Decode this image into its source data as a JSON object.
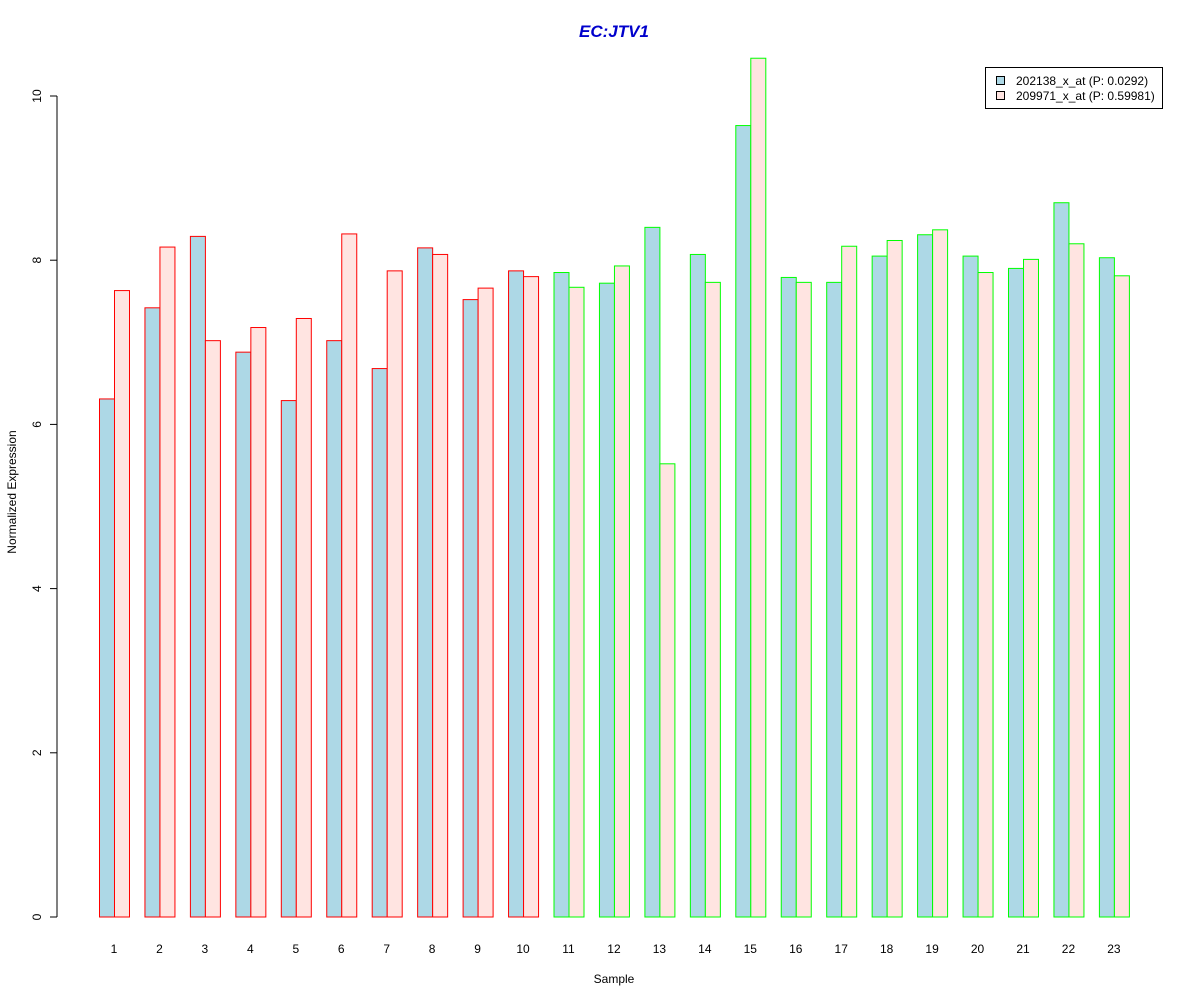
{
  "chart_data": {
    "type": "bar",
    "title": "EC:JTV1",
    "xlabel": "Sample",
    "ylabel": "Normalized Expression",
    "ylim": [
      0,
      10.5
    ],
    "y_ticks": [
      0,
      2,
      4,
      6,
      8,
      10
    ],
    "grid": false,
    "legend_position": "top-right",
    "categories": [
      "1",
      "2",
      "3",
      "4",
      "5",
      "6",
      "7",
      "8",
      "9",
      "10",
      "11",
      "12",
      "13",
      "14",
      "15",
      "16",
      "17",
      "18",
      "19",
      "20",
      "21",
      "22",
      "23"
    ],
    "group_border_colors": [
      "red",
      "red",
      "red",
      "red",
      "red",
      "red",
      "red",
      "red",
      "red",
      "red",
      "green",
      "green",
      "green",
      "green",
      "green",
      "green",
      "green",
      "green",
      "green",
      "green",
      "green",
      "green",
      "green"
    ],
    "series": [
      {
        "name": "202138_x_at (P: 0.0292)",
        "values": [
          6.31,
          7.42,
          8.29,
          6.88,
          6.29,
          7.02,
          6.68,
          8.15,
          7.52,
          7.87,
          7.85,
          7.72,
          8.4,
          8.07,
          9.64,
          7.79,
          7.73,
          8.05,
          8.31,
          8.05,
          7.9,
          8.7,
          8.03
        ]
      },
      {
        "name": "209971_x_at (P: 0.59981)",
        "values": [
          7.63,
          8.16,
          7.02,
          7.18,
          7.29,
          8.32,
          7.87,
          8.07,
          7.66,
          7.8,
          7.67,
          7.93,
          5.52,
          7.73,
          10.46,
          7.73,
          8.17,
          8.24,
          8.37,
          7.85,
          8.01,
          8.2,
          7.81
        ]
      }
    ],
    "colors": {
      "title": "#0000cc",
      "series_fills": [
        "#add8e6",
        "#ffe4e1"
      ],
      "border_red": "#ff0000",
      "border_green": "#00ff00",
      "axis": "#000000"
    }
  }
}
